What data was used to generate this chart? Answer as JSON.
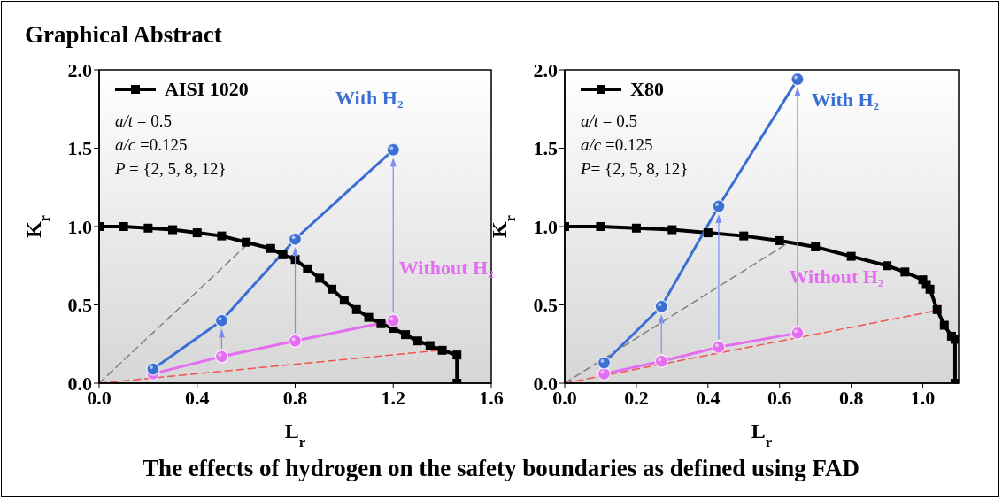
{
  "chart_data": [
    {
      "type": "line",
      "title": "Graphical Abstract",
      "subtitle": "The effects of hydrogen on the safety boundaries as defined using FAD",
      "xlabel": "L$_{r}$",
      "ylabel": "K$_{r}$",
      "xlim": [
        0,
        1.6
      ],
      "ylim": [
        0,
        2.0
      ],
      "xticks": [
        {
          "value": 0,
          "label": "0.0"
        },
        {
          "value": 0.4,
          "label": "0.4"
        },
        {
          "value": 0.8,
          "label": "0.8"
        },
        {
          "value": 1.2,
          "label": "1.2"
        },
        {
          "value": 1.6,
          "label": "1.6"
        }
      ],
      "yticks": [
        {
          "value": 0,
          "label": "0.0"
        },
        {
          "value": 0.5,
          "label": "0.5"
        },
        {
          "value": 1.0,
          "label": "1.0"
        },
        {
          "value": 1.5,
          "label": "1.5"
        },
        {
          "value": 2.0,
          "label": "2.0"
        }
      ],
      "legend": "top left",
      "annotations": [
        "a/t = 0.5",
        "a/c =0.125",
        "P = {2, 5, 8, 12}"
      ],
      "series": [
        {
          "name": "AISI 1020",
          "color": "#000000",
          "marker": "square",
          "x": [
            0,
            0.1,
            0.2,
            0.3,
            0.4,
            0.5,
            0.6,
            0.7,
            0.75,
            0.8,
            0.85,
            0.9,
            0.95,
            1.0,
            1.05,
            1.1,
            1.15,
            1.2,
            1.25,
            1.3,
            1.35,
            1.4,
            1.46,
            1.46
          ],
          "values": [
            1.0,
            1.0,
            0.99,
            0.98,
            0.96,
            0.94,
            0.9,
            0.86,
            0.82,
            0.79,
            0.73,
            0.67,
            0.6,
            0.53,
            0.47,
            0.42,
            0.38,
            0.35,
            0.31,
            0.27,
            0.24,
            0.21,
            0.18,
            0
          ]
        },
        {
          "name": "With H₂",
          "color": "#3b6fd4",
          "marker": "circle",
          "x": [
            0.22,
            0.5,
            0.8,
            1.2
          ],
          "values": [
            0.09,
            0.4,
            0.92,
            1.49
          ]
        },
        {
          "name": "Without H₂",
          "color": "#e46ef0",
          "marker": "circle",
          "x": [
            0.22,
            0.5,
            0.8,
            1.2
          ],
          "values": [
            0.06,
            0.17,
            0.27,
            0.4
          ]
        },
        {
          "color": "#808080",
          "marker": "none",
          "line_style": "dashed",
          "x": [
            0,
            0.6
          ],
          "values": [
            0,
            0.88
          ]
        },
        {
          "color": "#f0544f",
          "marker": "none",
          "line_style": "dashed",
          "x": [
            0,
            1.39
          ],
          "values": [
            0,
            0.21
          ]
        }
      ]
    },
    {
      "type": "line",
      "xlabel": "L$_{r}$",
      "ylabel": "K$_{r}$",
      "xlim": [
        0,
        1.1
      ],
      "ylim": [
        0,
        2.0
      ],
      "xticks": [
        {
          "value": 0,
          "label": "0.0"
        },
        {
          "value": 0.2,
          "label": "0.2"
        },
        {
          "value": 0.4,
          "label": "0.4"
        },
        {
          "value": 0.6,
          "label": "0.6"
        },
        {
          "value": 0.8,
          "label": "0.8"
        },
        {
          "value": 1.0,
          "label": "1.0"
        }
      ],
      "yticks": [
        {
          "value": 0,
          "label": "0.0"
        },
        {
          "value": 0.5,
          "label": "0.5"
        },
        {
          "value": 1.0,
          "label": "1.0"
        },
        {
          "value": 1.5,
          "label": "1.5"
        },
        {
          "value": 2.0,
          "label": "2.0"
        }
      ],
      "legend": "top left",
      "annotations": [
        "a/t = 0.5",
        "a/c =0.125",
        "P= {2, 5, 8, 12}"
      ],
      "series": [
        {
          "name": "X80",
          "color": "#000000",
          "marker": "square",
          "x": [
            0,
            0.1,
            0.2,
            0.3,
            0.4,
            0.5,
            0.6,
            0.7,
            0.8,
            0.9,
            0.95,
            1.0,
            1.01,
            1.02,
            1.04,
            1.06,
            1.08,
            1.09,
            1.09
          ],
          "values": [
            1.0,
            1.0,
            0.99,
            0.98,
            0.96,
            0.94,
            0.91,
            0.87,
            0.81,
            0.75,
            0.71,
            0.66,
            0.63,
            0.6,
            0.47,
            0.37,
            0.3,
            0.28,
            0
          ]
        },
        {
          "name": "With H₂",
          "color": "#3b6fd4",
          "marker": "circle",
          "x": [
            0.11,
            0.27,
            0.43,
            0.65
          ],
          "values": [
            0.13,
            0.49,
            1.13,
            1.94
          ]
        },
        {
          "name": "Without H₂",
          "color": "#e46ef0",
          "marker": "circle",
          "x": [
            0.11,
            0.27,
            0.43,
            0.65
          ],
          "values": [
            0.06,
            0.14,
            0.23,
            0.32
          ]
        },
        {
          "color": "#808080",
          "marker": "none",
          "line_style": "dashed",
          "x": [
            0,
            0.62
          ],
          "values": [
            0,
            0.89
          ]
        },
        {
          "color": "#f0544f",
          "marker": "none",
          "line_style": "dashed",
          "x": [
            0,
            1.03
          ],
          "values": [
            0,
            0.46
          ]
        }
      ]
    }
  ]
}
